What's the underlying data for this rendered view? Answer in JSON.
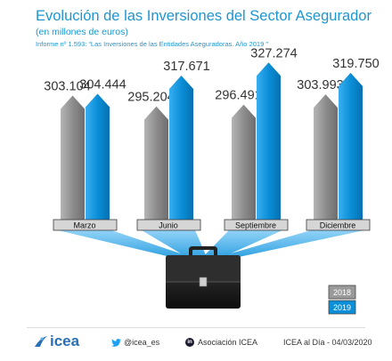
{
  "header": {
    "title": "Evolución de las Inversiones del Sector Asegurador",
    "subtitle": "(en millones de euros)",
    "note": "Informe nº 1.593: “Las Inversiones de las Entidades Aseguradoras. Año 2019 ”"
  },
  "chart_data": {
    "type": "bar",
    "categories": [
      "Marzo",
      "Junio",
      "Septiembre",
      "Diciembre"
    ],
    "series": [
      {
        "name": "2018",
        "values": [
          303104,
          295204,
          296491,
          303993
        ],
        "labels": [
          "303.104",
          "295.204",
          "296.491",
          "303.993"
        ],
        "color": "#8c8c8c"
      },
      {
        "name": "2019",
        "values": [
          304444,
          317671,
          327274,
          319750
        ],
        "labels": [
          "304.444",
          "317.671",
          "327.274",
          "319.750"
        ],
        "color": "#0a8fd8"
      }
    ],
    "legend_position": "bottom-right",
    "grid": false,
    "axes_visible": false,
    "ylim": [
      280000,
      332000
    ]
  },
  "colors": {
    "title": "#1e96d2",
    "series_2018": "#8c8c8c",
    "series_2019": "#0a8fd8",
    "ray": "#2f9fe6"
  },
  "footer": {
    "brand": "icea",
    "twitter": "@icea_es",
    "linkedin": "Asociación ICEA",
    "date_note": "ICEA al Día - 04/03/2020",
    "icons": [
      "icea-logo-icon",
      "twitter-bird-icon",
      "linkedin-icon"
    ]
  }
}
